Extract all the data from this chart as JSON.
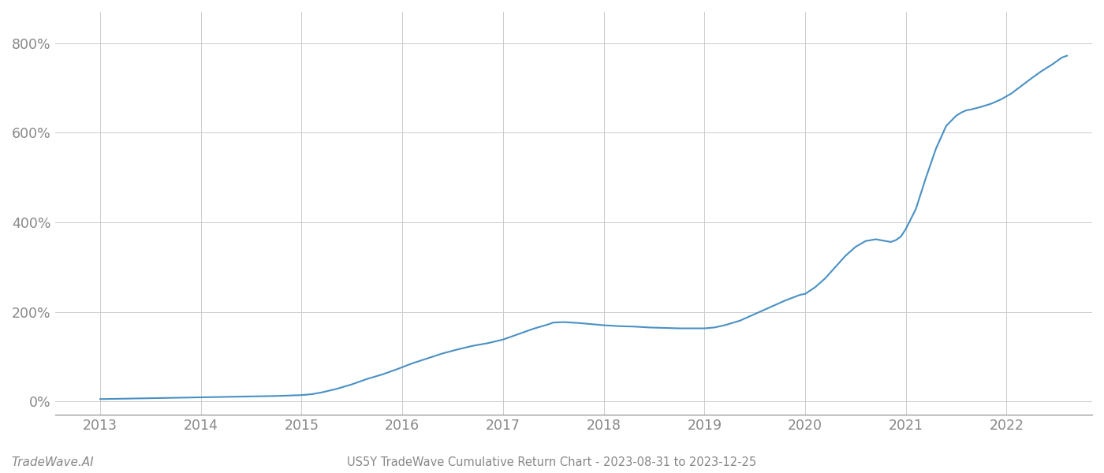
{
  "title": "US5Y TradeWave Cumulative Return Chart - 2023-08-31 to 2023-12-25",
  "watermark": "TradeWave.AI",
  "background_color": "#ffffff",
  "line_color": "#4a90c4",
  "line_width": 1.5,
  "x_years": [
    2013,
    2014,
    2015,
    2016,
    2017,
    2018,
    2019,
    2020,
    2021,
    2022
  ],
  "data_points": [
    [
      2013.0,
      5
    ],
    [
      2013.25,
      6
    ],
    [
      2013.5,
      7
    ],
    [
      2013.75,
      8
    ],
    [
      2014.0,
      9
    ],
    [
      2014.25,
      10
    ],
    [
      2014.5,
      11
    ],
    [
      2014.75,
      12
    ],
    [
      2015.0,
      14
    ],
    [
      2015.1,
      16
    ],
    [
      2015.2,
      20
    ],
    [
      2015.35,
      28
    ],
    [
      2015.5,
      38
    ],
    [
      2015.65,
      50
    ],
    [
      2015.8,
      60
    ],
    [
      2015.95,
      72
    ],
    [
      2016.1,
      85
    ],
    [
      2016.25,
      96
    ],
    [
      2016.4,
      107
    ],
    [
      2016.55,
      116
    ],
    [
      2016.7,
      124
    ],
    [
      2016.85,
      130
    ],
    [
      2017.0,
      138
    ],
    [
      2017.15,
      150
    ],
    [
      2017.3,
      162
    ],
    [
      2017.45,
      172
    ],
    [
      2017.5,
      176
    ],
    [
      2017.6,
      177
    ],
    [
      2017.75,
      175
    ],
    [
      2017.9,
      172
    ],
    [
      2018.0,
      170
    ],
    [
      2018.15,
      168
    ],
    [
      2018.3,
      167
    ],
    [
      2018.45,
      165
    ],
    [
      2018.6,
      164
    ],
    [
      2018.75,
      163
    ],
    [
      2018.9,
      163
    ],
    [
      2019.0,
      163
    ],
    [
      2019.1,
      165
    ],
    [
      2019.2,
      170
    ],
    [
      2019.35,
      180
    ],
    [
      2019.5,
      195
    ],
    [
      2019.65,
      210
    ],
    [
      2019.8,
      225
    ],
    [
      2019.95,
      238
    ],
    [
      2020.0,
      240
    ],
    [
      2020.1,
      255
    ],
    [
      2020.2,
      275
    ],
    [
      2020.3,
      300
    ],
    [
      2020.4,
      325
    ],
    [
      2020.5,
      345
    ],
    [
      2020.6,
      358
    ],
    [
      2020.7,
      362
    ],
    [
      2020.75,
      360
    ],
    [
      2020.8,
      358
    ],
    [
      2020.85,
      356
    ],
    [
      2020.9,
      360
    ],
    [
      2020.95,
      368
    ],
    [
      2021.0,
      385
    ],
    [
      2021.1,
      430
    ],
    [
      2021.2,
      500
    ],
    [
      2021.3,
      565
    ],
    [
      2021.4,
      615
    ],
    [
      2021.5,
      638
    ],
    [
      2021.55,
      645
    ],
    [
      2021.6,
      650
    ],
    [
      2021.65,
      652
    ],
    [
      2021.7,
      655
    ],
    [
      2021.75,
      658
    ],
    [
      2021.85,
      665
    ],
    [
      2021.95,
      675
    ],
    [
      2022.05,
      688
    ],
    [
      2022.15,
      705
    ],
    [
      2022.25,
      722
    ],
    [
      2022.35,
      738
    ],
    [
      2022.45,
      752
    ],
    [
      2022.5,
      760
    ],
    [
      2022.55,
      768
    ],
    [
      2022.6,
      772
    ]
  ],
  "xlim": [
    2012.55,
    2022.85
  ],
  "ylim": [
    -30,
    870
  ],
  "yticks": [
    0,
    200,
    400,
    600,
    800
  ],
  "ytick_labels": [
    "0%",
    "200%",
    "400%",
    "600%",
    "800%"
  ],
  "grid_color": "#cccccc",
  "axis_color": "#888888",
  "tick_color": "#888888",
  "title_fontsize": 10.5,
  "watermark_fontsize": 11,
  "tick_fontsize": 12.5
}
